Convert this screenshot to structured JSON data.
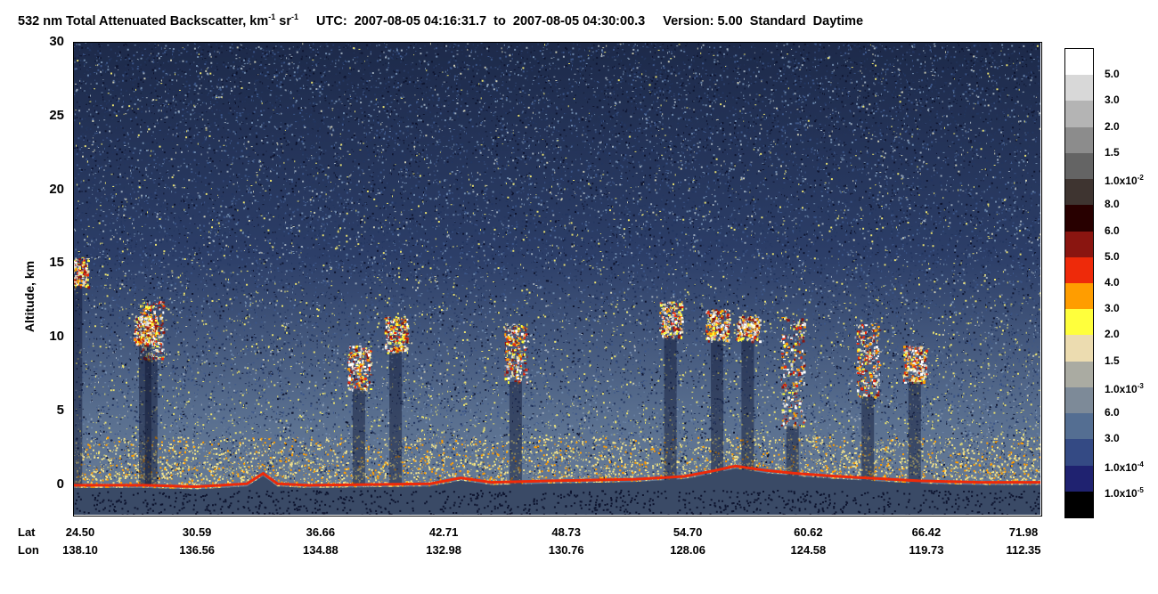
{
  "title": {
    "quantity": "532 nm Total Attenuated Backscatter, km",
    "unit_exp1": "-1",
    "unit_mid": " sr",
    "unit_exp2": "-1",
    "utc_label": "UTC:",
    "start": "2007-08-05 04:16:31.7",
    "to_label": "to",
    "end": "2007-08-05 04:30:00.3",
    "version": "Version: 5.00",
    "product": "Standard",
    "daynight": "Daytime"
  },
  "chart_data": {
    "type": "heatmap",
    "ylabel": "Altitude, km",
    "ylim": [
      -2,
      30
    ],
    "yticks": [
      "0",
      "5",
      "10",
      "15",
      "20",
      "25",
      "30"
    ],
    "x_rows": [
      {
        "label": "Lat",
        "values": [
          "24.50",
          "30.59",
          "36.66",
          "42.71",
          "48.73",
          "54.70",
          "60.62",
          "66.42",
          "71.98"
        ]
      },
      {
        "label": "Lon",
        "values": [
          "138.10",
          "136.56",
          "134.88",
          "132.98",
          "130.76",
          "128.06",
          "124.58",
          "119.73",
          "112.35"
        ]
      }
    ],
    "colorbar": {
      "colors": [
        "#ffffff",
        "#d8d8d8",
        "#b4b4b4",
        "#8c8c8c",
        "#646464",
        "#3e3430",
        "#280000",
        "#8a1510",
        "#ee2a0a",
        "#ff9d00",
        "#ffff3c",
        "#ecdcb0",
        "#aaaba2",
        "#7d8a98",
        "#546e92",
        "#344a84",
        "#1f2270",
        "#000000"
      ],
      "labels": [
        {
          "base": "5.0",
          "exp": ""
        },
        {
          "base": "3.0",
          "exp": ""
        },
        {
          "base": "2.0",
          "exp": ""
        },
        {
          "base": "1.5",
          "exp": ""
        },
        {
          "base": "1.0x10",
          "exp": "-2"
        },
        {
          "base": "8.0",
          "exp": ""
        },
        {
          "base": "6.0",
          "exp": ""
        },
        {
          "base": "5.0",
          "exp": ""
        },
        {
          "base": "4.0",
          "exp": ""
        },
        {
          "base": "3.0",
          "exp": ""
        },
        {
          "base": "2.0",
          "exp": ""
        },
        {
          "base": "1.5",
          "exp": ""
        },
        {
          "base": "1.0x10",
          "exp": "-3"
        },
        {
          "base": "6.0",
          "exp": ""
        },
        {
          "base": "3.0",
          "exp": ""
        },
        {
          "base": "1.0x10",
          "exp": "-4"
        },
        {
          "base": "1.0x10",
          "exp": "-5"
        }
      ]
    },
    "cloud_features": [
      {
        "lat": 24.6,
        "bottom_km": 13.5,
        "top_km": 15.5
      },
      {
        "lat": 28.3,
        "bottom_km": 8.5,
        "top_km": 12.5
      },
      {
        "lat": 28.0,
        "bottom_km": 9.5,
        "top_km": 11.5
      },
      {
        "lat": 38.5,
        "bottom_km": 6.5,
        "top_km": 9.5
      },
      {
        "lat": 40.3,
        "bottom_km": 9.0,
        "top_km": 11.5
      },
      {
        "lat": 46.2,
        "bottom_km": 7.0,
        "top_km": 11.0
      },
      {
        "lat": 53.8,
        "bottom_km": 10.0,
        "top_km": 12.5
      },
      {
        "lat": 56.1,
        "bottom_km": 9.8,
        "top_km": 12.0
      },
      {
        "lat": 57.6,
        "bottom_km": 9.8,
        "top_km": 11.5
      },
      {
        "lat": 59.8,
        "bottom_km": 4.0,
        "top_km": 11.5
      },
      {
        "lat": 63.5,
        "bottom_km": 6.0,
        "top_km": 11.0
      },
      {
        "lat": 65.8,
        "bottom_km": 7.0,
        "top_km": 9.5
      }
    ],
    "surface_km": [
      [
        24.5,
        0.0
      ],
      [
        28.0,
        0.0
      ],
      [
        30.5,
        -0.1
      ],
      [
        33.0,
        0.1
      ],
      [
        33.8,
        0.8
      ],
      [
        34.5,
        0.1
      ],
      [
        36.0,
        0.0
      ],
      [
        42.0,
        0.1
      ],
      [
        43.5,
        0.5
      ],
      [
        45.0,
        0.2
      ],
      [
        48.0,
        0.3
      ],
      [
        52.0,
        0.4
      ],
      [
        54.5,
        0.6
      ],
      [
        56.0,
        1.0
      ],
      [
        57.0,
        1.3
      ],
      [
        58.5,
        1.0
      ],
      [
        60.0,
        0.8
      ],
      [
        62.0,
        0.6
      ],
      [
        66.0,
        0.3
      ],
      [
        69.0,
        0.2
      ],
      [
        71.98,
        0.2
      ]
    ]
  }
}
